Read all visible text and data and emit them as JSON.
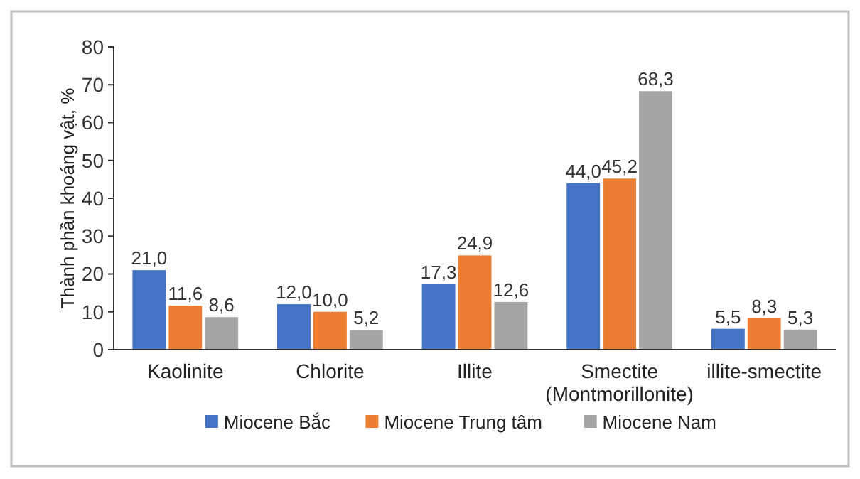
{
  "chart_data": {
    "type": "bar",
    "ylabel": "Thành phần khoáng vật, %",
    "categories": [
      "Kaolinite",
      "Chlorite",
      "Illite",
      "Smectite\n(Montmorillonite)",
      "illite-smectite"
    ],
    "series": [
      {
        "name": "Miocene Bắc",
        "color": "#4472c4",
        "values": [
          21.0,
          12.0,
          17.3,
          44.0,
          5.5
        ],
        "value_labels": [
          "21,0",
          "12,0",
          "17,3",
          "44,0",
          "5,5"
        ]
      },
      {
        "name": "Miocene Trung tâm",
        "color": "#ed7d31",
        "values": [
          11.6,
          10.0,
          24.9,
          45.2,
          8.3
        ],
        "value_labels": [
          "11,6",
          "10,0",
          "24,9",
          "45,2",
          "8,3"
        ]
      },
      {
        "name": "Miocene Nam",
        "color": "#a5a5a5",
        "values": [
          8.6,
          5.2,
          12.6,
          68.3,
          5.3
        ],
        "value_labels": [
          "8,6",
          "5,2",
          "12,6",
          "68,3",
          "5,3"
        ]
      }
    ],
    "ylim": [
      0,
      80
    ],
    "yticks": [
      0,
      10,
      20,
      30,
      40,
      50,
      60,
      70,
      80
    ],
    "grid": false,
    "legend": "bottom"
  }
}
